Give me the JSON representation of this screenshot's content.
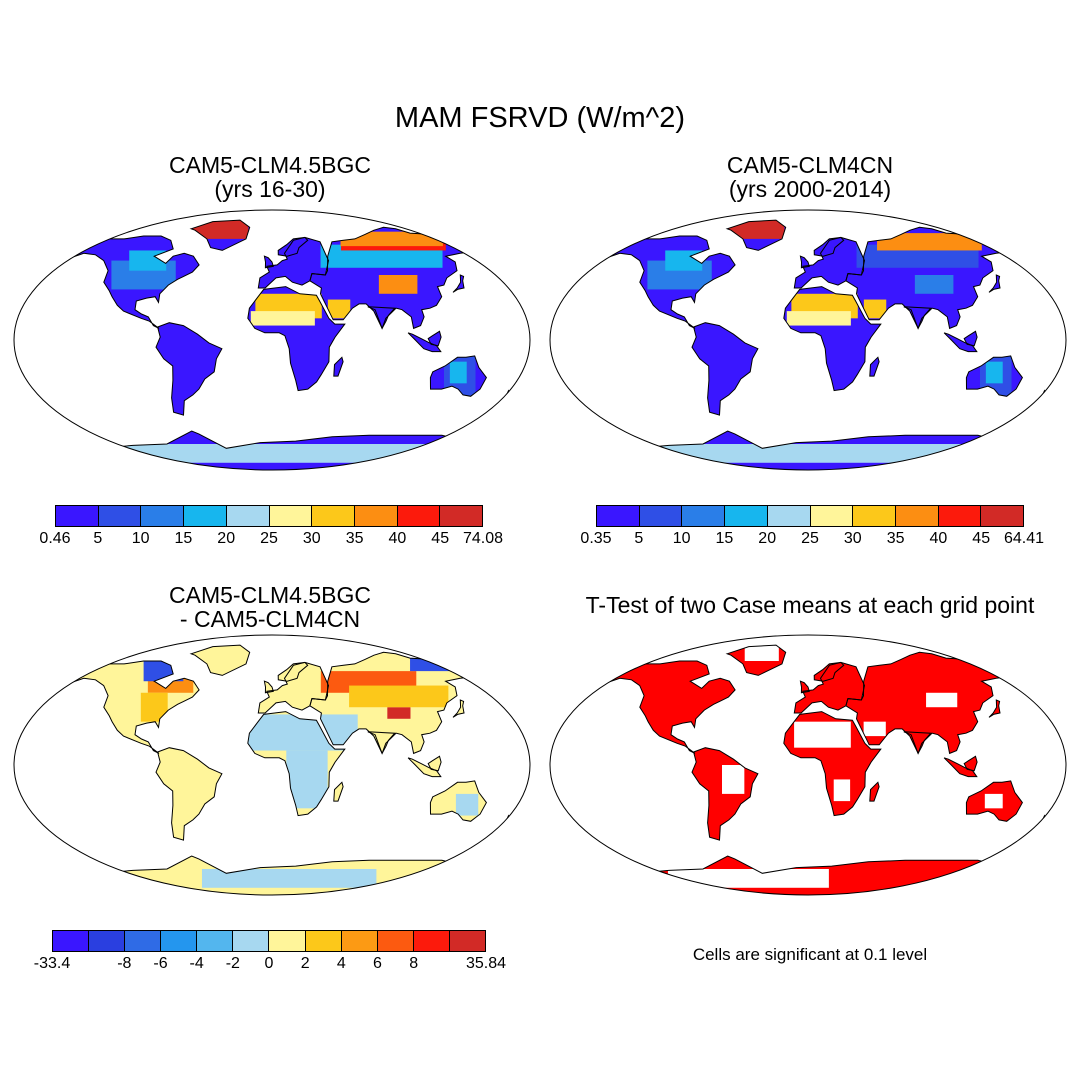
{
  "figure": {
    "title": "MAM FSRVD (W/m^2)",
    "note": "Cells are significant at 0.1 level"
  },
  "panels": [
    {
      "id": "case1",
      "title_line1": "CAM5-CLM4.5BGC",
      "title_line2": "(yrs 16-30)",
      "fill_style": "case1"
    },
    {
      "id": "case2",
      "title_line1": "CAM5-CLM4CN",
      "title_line2": "(yrs 2000-2014)",
      "fill_style": "case2"
    },
    {
      "id": "diff",
      "title_line1": "CAM5-CLM4.5BGC",
      "title_line2": "- CAM5-CLM4CN",
      "fill_style": "diff"
    },
    {
      "id": "ttest",
      "title_line1": "T-Test of two Case means at each grid point",
      "title_line2": "",
      "fill_style": "ttest"
    }
  ],
  "colorbars": {
    "case1": {
      "labels": [
        "0.46",
        "5",
        "10",
        "15",
        "20",
        "25",
        "30",
        "35",
        "40",
        "45",
        "74.08"
      ],
      "colors": [
        "#3a16ff",
        "#2f4fe6",
        "#2a7ee8",
        "#17b6ee",
        "#a7d8f0",
        "#fff59a",
        "#fcc81a",
        "#fc8e12",
        "#fc1a0c",
        "#d22a26"
      ]
    },
    "case2": {
      "labels": [
        "0.35",
        "5",
        "10",
        "15",
        "20",
        "25",
        "30",
        "35",
        "40",
        "45",
        "64.41"
      ],
      "colors": [
        "#3a16ff",
        "#2f4fe6",
        "#2a7ee8",
        "#17b6ee",
        "#a7d8f0",
        "#fff59a",
        "#fcc81a",
        "#fc8e12",
        "#fc1a0c",
        "#d22a26"
      ]
    },
    "diff": {
      "labels": [
        "-33.4",
        "-8",
        "-6",
        "-4",
        "-2",
        "0",
        "2",
        "4",
        "6",
        "8",
        "35.84"
      ],
      "label_slots": [
        0,
        2,
        3,
        4,
        5,
        6,
        7,
        8,
        9,
        10,
        12
      ],
      "colors": [
        "#3a16ff",
        "#2a3fe0",
        "#2f6be6",
        "#2496ee",
        "#53b6ee",
        "#a7d8f0",
        "#fff59a",
        "#fcc81a",
        "#fc9a14",
        "#fc5a10",
        "#fc1a0c",
        "#d22a26"
      ]
    }
  }
}
